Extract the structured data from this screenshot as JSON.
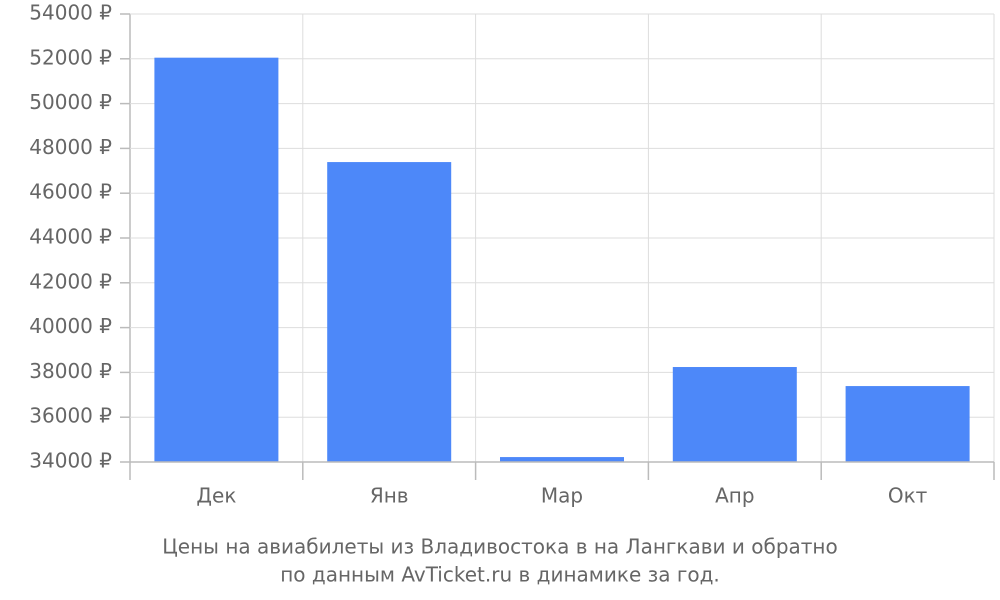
{
  "chart_data": {
    "type": "bar",
    "caption": [
      "Цены на авиабилеты из Владивостока в на Лангкави и обратно",
      "по данным AvTicket.ru в динамике за год."
    ],
    "categories": [
      "Дек",
      "Янв",
      "Мар",
      "Апр",
      "Окт"
    ],
    "values": [
      52050,
      47390,
      34220,
      38240,
      37390
    ],
    "color": "#4d88f9",
    "ylim": [
      34000,
      54000
    ],
    "yticks": [
      {
        "value": 34000,
        "label": "34000 ₽"
      },
      {
        "value": 36000,
        "label": "36000 ₽"
      },
      {
        "value": 38000,
        "label": "38000 ₽"
      },
      {
        "value": 40000,
        "label": "40000 ₽"
      },
      {
        "value": 42000,
        "label": "42000 ₽"
      },
      {
        "value": 44000,
        "label": "44000 ₽"
      },
      {
        "value": 46000,
        "label": "46000 ₽"
      },
      {
        "value": 48000,
        "label": "48000 ₽"
      },
      {
        "value": 50000,
        "label": "50000 ₽"
      },
      {
        "value": 52000,
        "label": "52000 ₽"
      },
      {
        "value": 54000,
        "label": "54000 ₽"
      }
    ],
    "grid": true
  }
}
